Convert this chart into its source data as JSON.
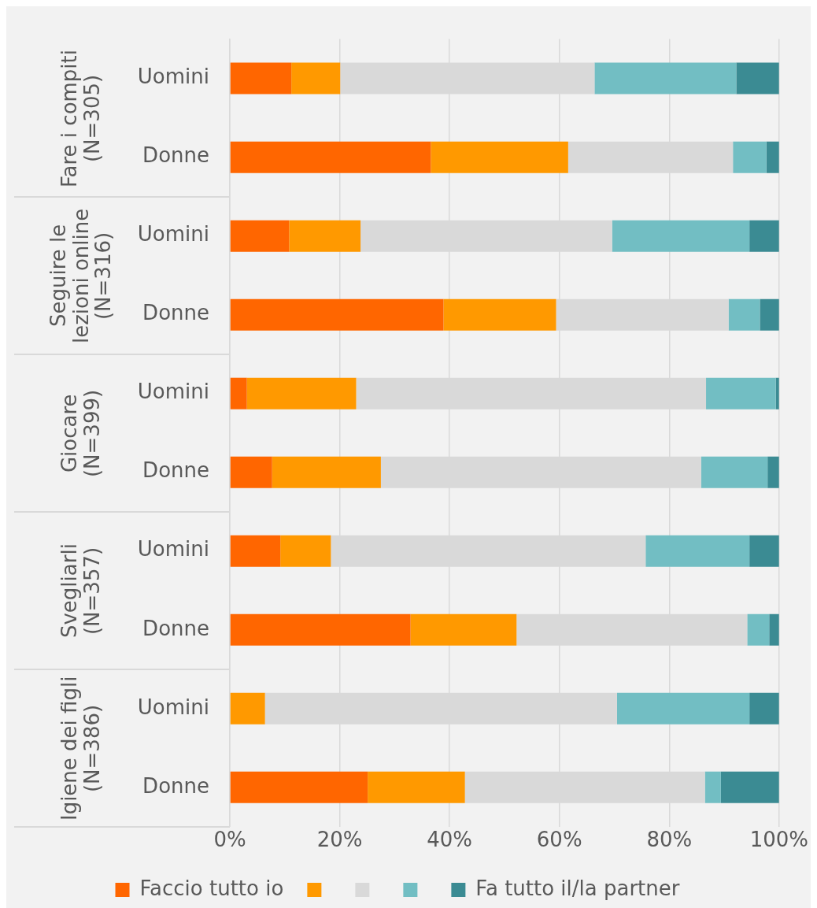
{
  "chart_data": {
    "type": "bar",
    "orientation": "horizontal",
    "stacked": true,
    "categories": [
      "Uomini",
      "Donne",
      "Uomini",
      "Donne",
      "Uomini",
      "Donne",
      "Uomini",
      "Donne",
      "Uomini",
      "Donne"
    ],
    "annotations": [
      "Fare i compiti (N=305)",
      "Seguire le lezioni online (N=316)",
      "Giocare (N=399)",
      "Svegliarli (N=357)",
      "Igiene dei figli (N=386)"
    ],
    "series": [
      {
        "name": "Faccio tutto io",
        "color": "#ff6600",
        "values": [
          11.2,
          36.6,
          10.8,
          38.9,
          3.1,
          7.7,
          9.2,
          32.9,
          0,
          25.1
        ]
      },
      {
        "color": "#ff9900",
        "values": [
          8.9,
          25.0,
          13.0,
          20.5,
          19.9,
          19.8,
          9.2,
          19.3,
          6.4,
          17.7
        ]
      },
      {
        "color": "#d9d9d9",
        "values": [
          46.3,
          30.0,
          45.8,
          31.4,
          63.7,
          58.3,
          57.3,
          42.0,
          64.1,
          43.7
        ]
      },
      {
        "color": "#72bec3",
        "values": [
          25.8,
          6.1,
          25.0,
          5.7,
          12.7,
          12.1,
          18.9,
          4.0,
          24.1,
          2.9
        ]
      },
      {
        "name": "Fa tutto il/la partner",
        "color": "#3b8b93",
        "values": [
          7.8,
          2.3,
          5.4,
          3.5,
          0.6,
          2.1,
          5.4,
          1.8,
          5.4,
          10.6
        ]
      }
    ],
    "xlim": [
      0,
      100
    ],
    "xticks": [
      {
        "value": 0,
        "label": "0%"
      },
      {
        "value": 20,
        "label": "20%"
      },
      {
        "value": 40,
        "label": "40%"
      },
      {
        "value": 60,
        "label": "60%"
      },
      {
        "value": 80,
        "label": "80%"
      },
      {
        "value": 100,
        "label": "100%"
      }
    ],
    "grid": "x",
    "legend": "bottom"
  }
}
